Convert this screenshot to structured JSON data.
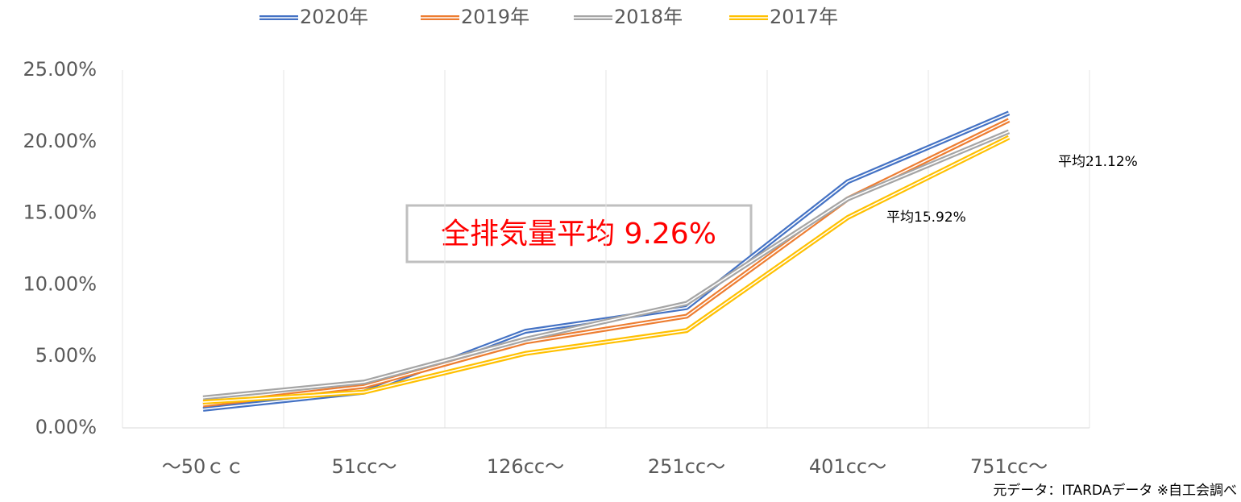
{
  "chart_data": {
    "type": "line",
    "categories": [
      "～50ｃｃ",
      "51cc～",
      "126cc～",
      "251cc～",
      "401cc～",
      "751cc～"
    ],
    "series": [
      {
        "name": "2020年",
        "color": "#4472c4",
        "values": [
          1.3,
          2.5,
          6.75,
          8.4,
          17.2,
          22.0
        ]
      },
      {
        "name": "2019年",
        "color": "#ed7d31",
        "values": [
          1.6,
          2.9,
          6.0,
          7.8,
          16.0,
          21.5
        ]
      },
      {
        "name": "2018年",
        "color": "#a5a5a5",
        "values": [
          2.1,
          3.2,
          6.2,
          8.7,
          16.0,
          20.7
        ]
      },
      {
        "name": "2017年",
        "color": "#ffc000",
        "values": [
          1.8,
          2.5,
          5.2,
          6.8,
          14.7,
          20.3
        ]
      }
    ],
    "ylim": [
      0,
      25
    ],
    "yticks": [
      {
        "value": 0,
        "label": "0.00%"
      },
      {
        "value": 5,
        "label": "5.00%"
      },
      {
        "value": 10,
        "label": "10.00%"
      },
      {
        "value": 15,
        "label": "15.00%"
      },
      {
        "value": 20,
        "label": "20.00%"
      },
      {
        "value": 25,
        "label": "25.00%"
      }
    ],
    "grid": "x",
    "legend": "top",
    "annotations": [
      "全排気量平均 9.26%",
      "平均15.92%",
      "平均21.12%"
    ],
    "source": "元データ：ITARDAデータ ※自工会調べ"
  }
}
